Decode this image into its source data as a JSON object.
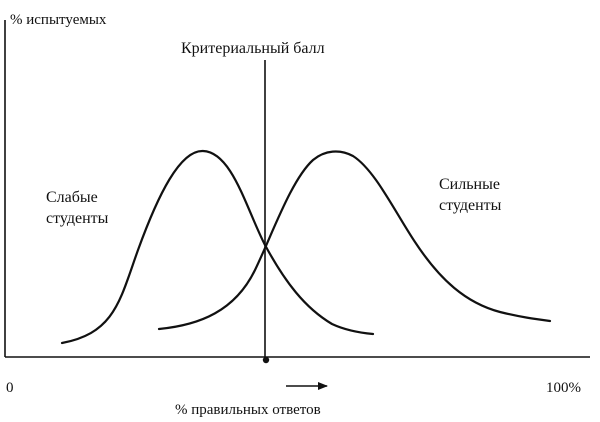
{
  "y_axis_label": "% испытуемых",
  "x_axis_label": "% правильных ответов",
  "x_min_label": "0",
  "x_max_label": "100%",
  "cutoff_label": "Критериальный балл",
  "weak_group": {
    "line1": "Слабые",
    "line2": "студенты"
  },
  "strong_group": {
    "line1": "Сильные",
    "line2": "студенты"
  },
  "colors": {
    "ink": "#111111",
    "background": "#ffffff"
  }
}
